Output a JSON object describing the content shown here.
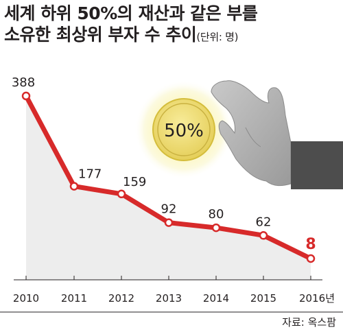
{
  "header": {
    "title_line1": "세계 하위 50%의 재산과 같은 부를",
    "title_line2": "소유한 최상위 부자 수 추이",
    "unit": "(단위: 명)"
  },
  "illustration": {
    "coin_label": "50%"
  },
  "source": "자료: 옥스팜",
  "colors": {
    "line": "#d72a2a",
    "area": "#ededed",
    "last_value": "#d72a2a",
    "text": "#231f20"
  },
  "chart_data": {
    "type": "line",
    "title": "세계 하위 50%의 재산과 같은 부를 소유한 최상위 부자 수 추이",
    "unit": "(단위: 명)",
    "x_tick_labels": [
      "2010",
      "2011",
      "2012",
      "2013",
      "2014",
      "2015",
      "2016년"
    ],
    "series": [
      {
        "values": [
          388,
          177,
          159,
          92,
          80,
          62,
          8
        ],
        "value_labels": [
          "388",
          "177",
          "159",
          "92",
          "80",
          "62",
          "8"
        ]
      }
    ],
    "grid": false,
    "area_fill": true
  }
}
